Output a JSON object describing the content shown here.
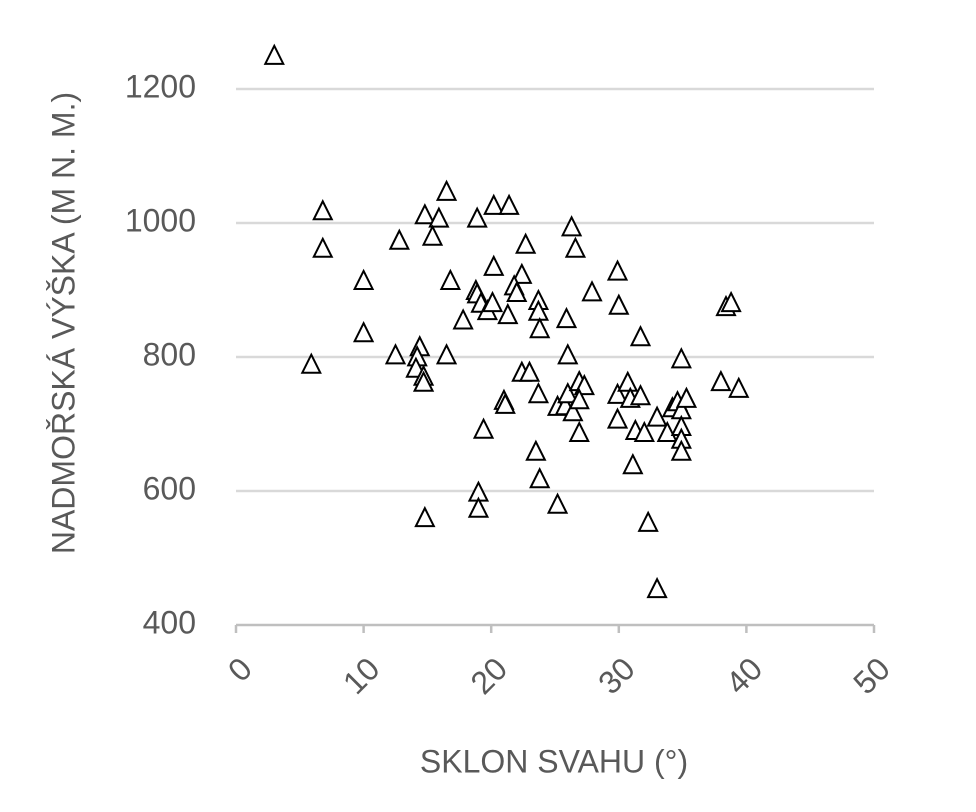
{
  "chart_data": {
    "type": "scatter",
    "x_label": "SKLON SVAHU (°)",
    "y_label": "NADMOŘSKÁ VÝŠKA (M N. M.)",
    "xlim": [
      0,
      50
    ],
    "xticks": [
      0,
      10,
      20,
      30,
      40,
      50
    ],
    "ylim": [
      400,
      1200
    ],
    "yticks": [
      400,
      600,
      800,
      1000,
      1200
    ],
    "grid": true,
    "series": [
      {
        "color": "#000000",
        "x": [
          3,
          6.8,
          6.8,
          5.9,
          10,
          10,
          12.8,
          12.5,
          14.8,
          15.9,
          15.4,
          16.5,
          16.8,
          16.5,
          14.4,
          14.2,
          14.1,
          14.7,
          14.7,
          14.8,
          17.8,
          18.9,
          18.8,
          18.9,
          19.2,
          19.7,
          20.1,
          20.2,
          20.2,
          21.4,
          21.3,
          21,
          21.1,
          19.4,
          19,
          19,
          22.7,
          22.4,
          21.8,
          22,
          22.4,
          23,
          23.7,
          23.7,
          23.8,
          23.7,
          23.5,
          23.8,
          25.2,
          25.2,
          25.8,
          26,
          25.9,
          26,
          26.3,
          26.6,
          26.4,
          26.9,
          26.9,
          27.3,
          26.9,
          27.9,
          29.9,
          30,
          29.9,
          29.9,
          30.7,
          30.9,
          31.1,
          31.3,
          31.7,
          31.7,
          32,
          32.3,
          33,
          33.8,
          33,
          34.2,
          34.6,
          34.9,
          34.9,
          34.9,
          34.9,
          34.9,
          35.3,
          38,
          38.4,
          38.8,
          39.4
        ],
        "y": [
          1248,
          1016,
          960,
          787,
          912,
          834,
          972,
          801,
          1010,
          1005,
          978,
          1045,
          912,
          801,
          813,
          798,
          781,
          769,
          760,
          558,
          853,
          1005,
          897,
          892,
          878,
          867,
          879,
          933,
          1024,
          1024,
          861,
          733,
          727,
          690,
          596,
          572,
          966,
          921,
          904,
          894,
          775,
          775,
          882,
          866,
          840,
          743,
          657,
          616,
          578,
          724,
          725,
          743,
          855,
          801,
          992,
          960,
          716,
          685,
          761,
          755,
          734,
          895,
          926,
          875,
          742,
          705,
          760,
          736,
          637,
          688,
          828,
          740,
          685,
          551,
          708,
          685,
          452,
          722,
          731,
          719,
          694,
          675,
          657,
          795,
          736,
          761,
          873,
          879,
          751
        ]
      }
    ]
  }
}
